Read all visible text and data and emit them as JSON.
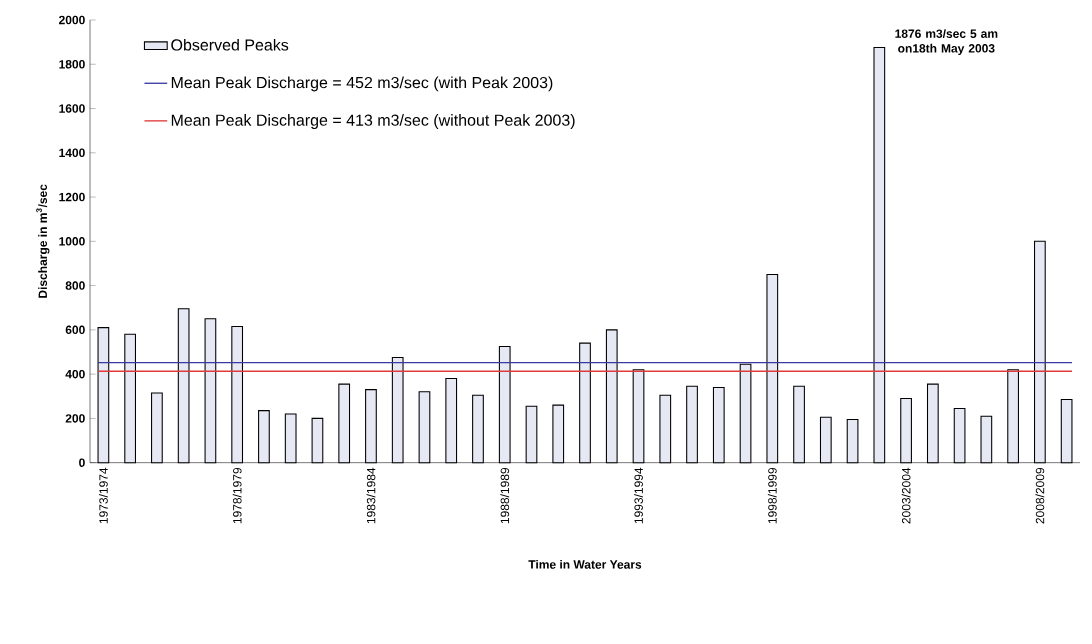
{
  "chart_data": {
    "type": "bar",
    "xlabel": "Time in Water Years",
    "ylabel": "Discharge in m$^{3}$/sec",
    "categories": [
      "1973/1974",
      null,
      null,
      null,
      null,
      "1978/1979",
      null,
      null,
      null,
      null,
      "1983/1984",
      null,
      null,
      null,
      null,
      "1988/1989",
      null,
      null,
      null,
      null,
      "1993/1994",
      null,
      null,
      null,
      null,
      "1998/1999",
      null,
      null,
      null,
      null,
      "2003/2004",
      null,
      null,
      null,
      null,
      "2008/2009",
      null
    ],
    "series": [
      {
        "name": "Observed Peaks",
        "color": "#e6e8f4",
        "values": [
          610,
          580,
          315,
          695,
          650,
          615,
          235,
          220,
          200,
          355,
          330,
          475,
          320,
          380,
          305,
          525,
          255,
          260,
          540,
          600,
          420,
          305,
          345,
          340,
          445,
          850,
          345,
          205,
          195,
          1876,
          290,
          355,
          245,
          210,
          420,
          1000,
          285
        ]
      }
    ],
    "ref_lines": [
      {
        "axis": "y",
        "value": 452,
        "label": "Mean Peak Discharge = 452 m3/sec (with Peak 2003)",
        "color": "#3a3aa0"
      },
      {
        "axis": "y",
        "value": 413,
        "label": "Mean Peak Discharge = 413  m3/sec  (without Peak 2003)",
        "color": "#e03a3a"
      }
    ],
    "annotations": [
      "1876 m3/sec 5 am on18th May 2003"
    ],
    "ylim": [
      0,
      2000
    ],
    "yticks": [
      0,
      200,
      400,
      600,
      800,
      1000,
      1200,
      1400,
      1600,
      1800,
      2000
    ],
    "legend": "top left",
    "grid": false
  }
}
